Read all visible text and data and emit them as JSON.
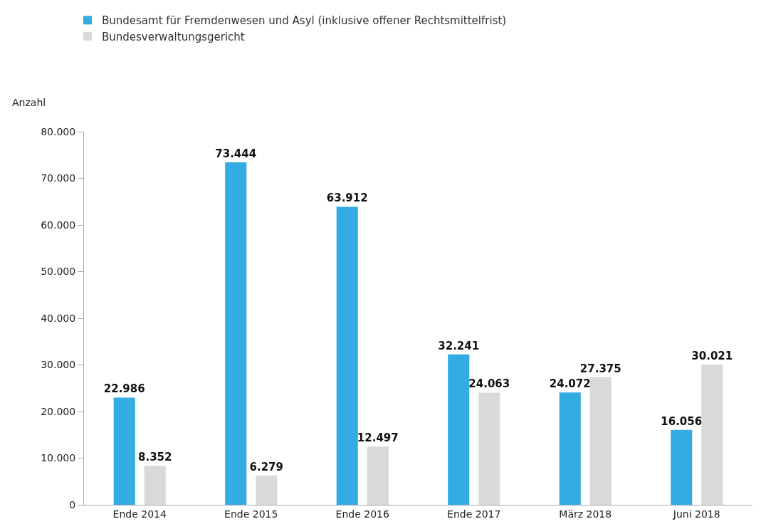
{
  "chart_data": {
    "type": "bar",
    "ylabel": "Anzahl",
    "categories": [
      "Ende 2014",
      "Ende 2015",
      "Ende 2016",
      "Ende 2017",
      "März 2018",
      "Juni 2018"
    ],
    "series": [
      {
        "name": "Bundesamt für Fremdenwesen und Asyl (inklusive offener Rechtsmittelfrist)",
        "color": "#33ace3",
        "values": [
          22986,
          73444,
          63912,
          32241,
          24072,
          16056
        ],
        "value_labels": [
          "22.986",
          "73.444",
          "63.912",
          "32.241",
          "24.072",
          "16.056"
        ]
      },
      {
        "name": "Bundesverwaltungsgericht",
        "color": "#d9d9d9",
        "values": [
          8352,
          6279,
          12497,
          24063,
          27375,
          30021
        ],
        "value_labels": [
          "8.352",
          "6.279",
          "12.497",
          "24.063",
          "27.375",
          "30.021"
        ]
      }
    ],
    "ylim": [
      0,
      80000
    ],
    "yticks": [
      0,
      {
        "value": 10000,
        "label": "10.000"
      },
      {
        "value": 20000,
        "label": "20.000"
      },
      {
        "value": 30000,
        "label": "30.000"
      },
      {
        "value": 40000,
        "label": "40.000"
      },
      {
        "value": 50000,
        "label": "50.000"
      },
      {
        "value": 60000,
        "label": "60.000"
      },
      {
        "value": 70000,
        "label": "70.000"
      },
      {
        "value": 80000,
        "label": "80.000"
      }
    ],
    "legend": "top left"
  }
}
